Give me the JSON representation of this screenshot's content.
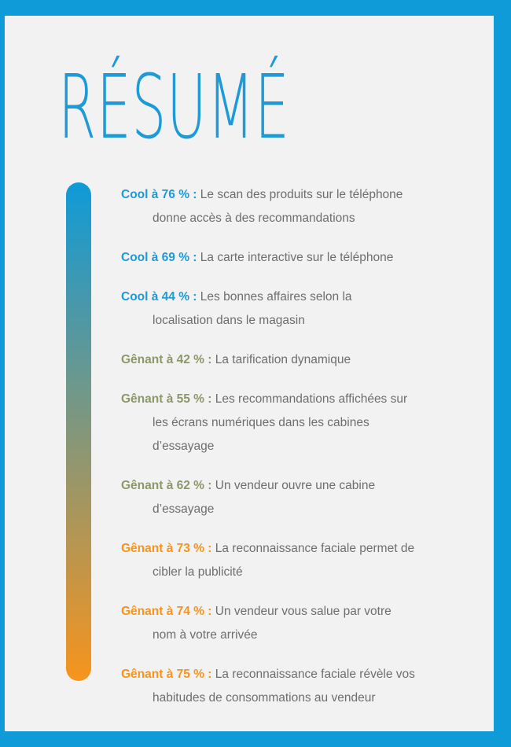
{
  "title": "RÉSUMÉ",
  "colors": {
    "frame": "#0f9ad8",
    "background": "#f2f2f2",
    "cool": "#1e9ad6",
    "genant_mid": "#8c9868",
    "genant_high": "#f7941d",
    "text": "#6e6e6e",
    "bar_top": "#0f9ad8",
    "bar_bottom": "#f7941d"
  },
  "items": [
    {
      "label": "Cool à 76 % :",
      "tone": "cool",
      "lines": [
        "Le scan des produits sur le téléphone",
        "donne accès à des recommandations"
      ]
    },
    {
      "label": "Cool à 69 % :",
      "tone": "cool",
      "lines": [
        "La carte interactive sur le téléphone"
      ]
    },
    {
      "label": "Cool à 44 % :",
      "tone": "cool",
      "lines": [
        "Les bonnes affaires selon la",
        "localisation dans le magasin"
      ]
    },
    {
      "label": "Gênant à 42 % :",
      "tone": "genant_mid",
      "lines": [
        "La tarification dynamique"
      ]
    },
    {
      "label": "Gênant à 55 % :",
      "tone": "genant_mid",
      "lines": [
        "Les recommandations affichées sur",
        "les écrans numériques dans les cabines",
        "d’essayage"
      ]
    },
    {
      "label": "Gênant à 62 % :",
      "tone": "genant_mid",
      "lines": [
        "Un vendeur ouvre une cabine",
        "d’essayage"
      ]
    },
    {
      "label": "Gênant à 73 % :",
      "tone": "genant_high",
      "lines": [
        "La reconnaissance faciale permet de",
        "cibler la publicité"
      ]
    },
    {
      "label": "Gênant à 74 % :",
      "tone": "genant_high",
      "lines": [
        "Un vendeur vous salue par votre",
        "nom à votre arrivée"
      ]
    },
    {
      "label": "Gênant à 75 % :",
      "tone": "genant_high",
      "lines": [
        "La reconnaissance faciale révèle vos",
        "habitudes de consommations au vendeur"
      ]
    }
  ]
}
